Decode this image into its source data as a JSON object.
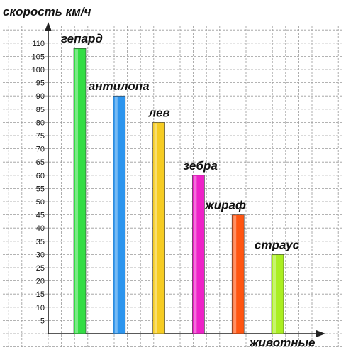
{
  "chart_data": {
    "type": "bar",
    "ylabel": "скорость км/ч",
    "xlabel": "животные",
    "categories": [
      "гепард",
      "антилопа",
      "лев",
      "зебра",
      "жираф",
      "страус"
    ],
    "values": [
      108,
      90,
      80,
      60,
      45,
      30
    ],
    "colors": [
      "#33dd44",
      "#2d95ee",
      "#f6cc22",
      "#ee22c8",
      "#ff5511",
      "#aaee22"
    ],
    "yticks": [
      5,
      10,
      15,
      20,
      25,
      30,
      35,
      40,
      45,
      50,
      55,
      60,
      65,
      70,
      75,
      80,
      85,
      90,
      95,
      100,
      105,
      110
    ],
    "ylim": [
      0,
      110
    ],
    "grid": true
  }
}
